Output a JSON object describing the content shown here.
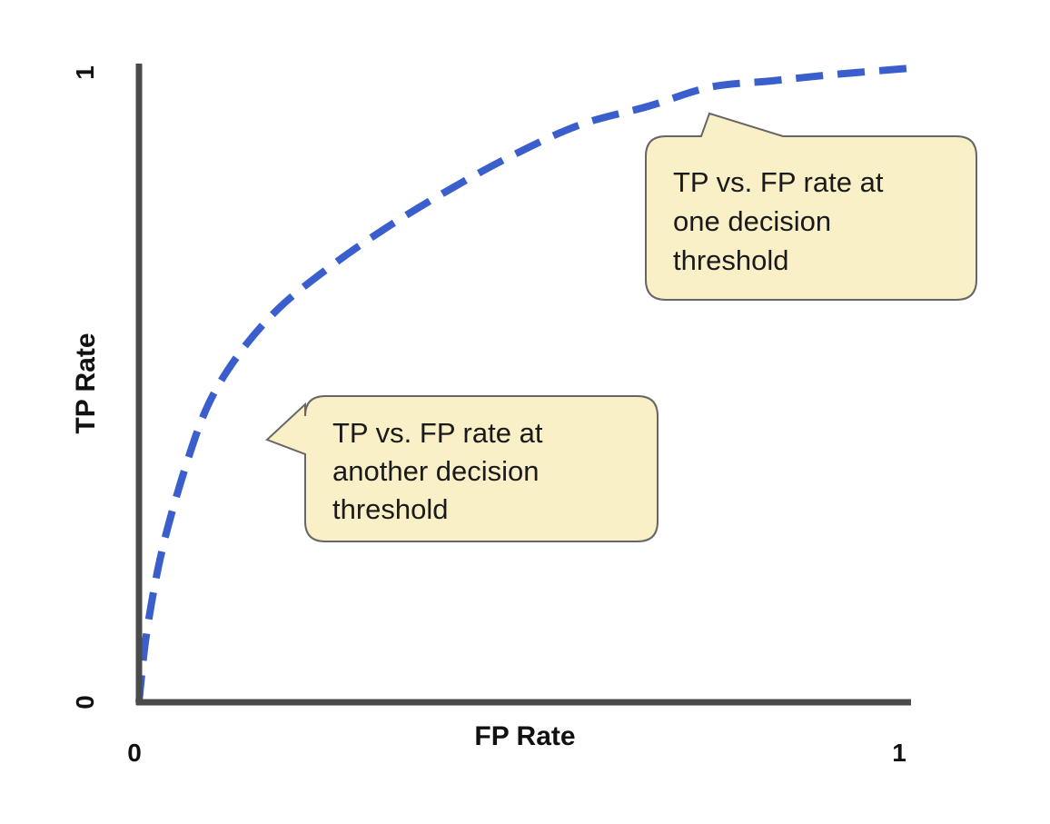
{
  "chart_data": {
    "type": "line",
    "title": "",
    "xlabel": "FP Rate",
    "ylabel": "TP Rate",
    "xlim": [
      0,
      1
    ],
    "ylim": [
      0,
      1
    ],
    "x_ticks": [
      "0",
      "1"
    ],
    "y_ticks": [
      "0",
      "1"
    ],
    "grid": false,
    "series": [
      {
        "color": "#3a5fcd",
        "line_style": "dashed",
        "x": [
          0.0,
          0.01,
          0.03,
          0.06,
          0.09,
          0.13,
          0.18,
          0.24,
          0.31,
          0.39,
          0.48,
          0.57,
          0.66,
          0.74,
          0.82,
          0.9,
          1.0
        ],
        "y": [
          0.0,
          0.11,
          0.24,
          0.37,
          0.47,
          0.55,
          0.62,
          0.68,
          0.74,
          0.8,
          0.86,
          0.91,
          0.94,
          0.97,
          0.98,
          0.99,
          1.0
        ]
      }
    ],
    "annotations": [
      {
        "lines": [
          "TP vs. FP rate at",
          "one decision",
          "threshold"
        ],
        "point": [
          0.72,
          0.96
        ],
        "fill": "#faf0c8"
      },
      {
        "lines": [
          "TP vs. FP rate at",
          "another decision",
          "threshold"
        ],
        "point": [
          0.14,
          0.5
        ],
        "fill": "#faf0c8"
      }
    ]
  }
}
